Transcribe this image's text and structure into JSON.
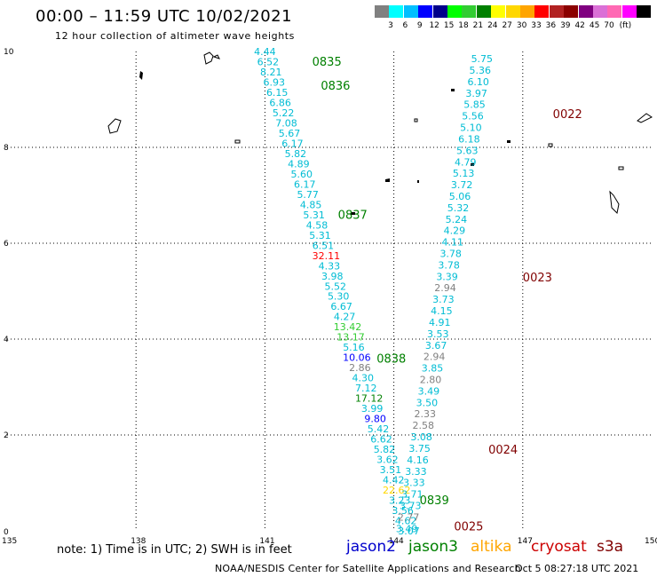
{
  "title": "00:00 – 11:59 UTC 10/02/2021",
  "subtitle": "12 hour collection of altimeter wave heights",
  "color_scale": {
    "unit": "(ft)",
    "colors": [
      "#808080",
      "#00ffff",
      "#00bfff",
      "#0000ff",
      "#00008b",
      "#00ff00",
      "#32cd32",
      "#008000",
      "#ffff00",
      "#ffd700",
      "#ffa500",
      "#ff0000",
      "#b22222",
      "#8b0000",
      "#800080",
      "#da70d6",
      "#ff69b4",
      "#ff00ff",
      "#000000"
    ],
    "labels": [
      "3",
      "6",
      "9",
      "12",
      "15",
      "18",
      "21",
      "24",
      "27",
      "30",
      "33",
      "36",
      "39",
      "42",
      "45",
      "70"
    ]
  },
  "axes": {
    "x_ticks": [
      "135",
      "138",
      "141",
      "144",
      "147",
      "150"
    ],
    "y_ticks": [
      "0",
      "2",
      "4",
      "6",
      "8",
      "10"
    ]
  },
  "track_labels": [
    {
      "text": "0835",
      "lon": 142.1,
      "lat": 9.8,
      "color": "#008000"
    },
    {
      "text": "0836",
      "lon": 142.3,
      "lat": 9.3,
      "color": "#008000"
    },
    {
      "text": "0837",
      "lon": 142.7,
      "lat": 6.6,
      "color": "#008000"
    },
    {
      "text": "0838",
      "lon": 143.6,
      "lat": 3.6,
      "color": "#008000"
    },
    {
      "text": "0839",
      "lon": 144.6,
      "lat": 0.65,
      "color": "#008000"
    },
    {
      "text": "0022",
      "lon": 147.7,
      "lat": 8.7,
      "color": "#800000"
    },
    {
      "text": "0023",
      "lon": 147.0,
      "lat": 5.3,
      "color": "#800000"
    },
    {
      "text": "0024",
      "lon": 146.2,
      "lat": 1.7,
      "color": "#800000"
    },
    {
      "text": "0025",
      "lon": 145.4,
      "lat": 0.1,
      "color": "#800000"
    }
  ],
  "passes": [
    {
      "name": "jason3-west",
      "lon_start": 141.0,
      "lon_end": 144.35,
      "lat_start": 10.0,
      "lat_end": 0.0,
      "values": [
        "4.44",
        "6.52",
        "8.21",
        "6.93",
        "6.15",
        "6.86",
        "5.22",
        "7.08",
        "5.67",
        "6.17",
        "5.82",
        "4.89",
        "5.60",
        "6.17",
        "5.77",
        "4.85",
        "5.31",
        "4.58",
        "5.31",
        "6.51",
        "32.11",
        "4.33",
        "3.98",
        "5.52",
        "5.30",
        "6.67",
        "4.27",
        "13.42",
        "13.17",
        "5.16",
        "10.06",
        "2.86",
        "4.30",
        "7.12",
        "17.12",
        "3.99",
        "9.80",
        "5.42",
        "6.62",
        "5.82",
        "3.62",
        "3.51",
        "4.42",
        "22.62",
        "3.23",
        "3.56",
        "4.62",
        "3.07"
      ],
      "colors": [
        "#00bcd4",
        "#00bcd4",
        "#00bcd4",
        "#00bcd4",
        "#00bcd4",
        "#00bcd4",
        "#00bcd4",
        "#00bcd4",
        "#00bcd4",
        "#00bcd4",
        "#00bcd4",
        "#00bcd4",
        "#00bcd4",
        "#00bcd4",
        "#00bcd4",
        "#00bcd4",
        "#00bcd4",
        "#00bcd4",
        "#00bcd4",
        "#00bcd4",
        "#ff0000",
        "#00bcd4",
        "#00bcd4",
        "#00bcd4",
        "#00bcd4",
        "#00bcd4",
        "#00bcd4",
        "#32cd32",
        "#32cd32",
        "#00bcd4",
        "#0000ff",
        "#808080",
        "#00bcd4",
        "#00bcd4",
        "#008000",
        "#00bcd4",
        "#0000ff",
        "#00bcd4",
        "#00bcd4",
        "#00bcd4",
        "#00bcd4",
        "#00bcd4",
        "#00bcd4",
        "#ffd700",
        "#00bcd4",
        "#00bcd4",
        "#00bcd4",
        "#00bcd4"
      ]
    },
    {
      "name": "cryosat-east",
      "lon_start": 146.05,
      "lon_end": 144.3,
      "lat_start": 9.85,
      "lat_end": 0.05,
      "values": [
        "5.75",
        "5.36",
        "6.10",
        "3.97",
        "5.85",
        "5.56",
        "5.10",
        "6.18",
        "5.63",
        "4.79",
        "5.13",
        "3.72",
        "5.06",
        "5.32",
        "5.24",
        "4.29",
        "4.11",
        "3.78",
        "3.78",
        "3.39",
        "2.94",
        "3.73",
        "4.15",
        "4.91",
        "3.53",
        "3.67",
        "2.94",
        "3.85",
        "2.80",
        "3.49",
        "3.50",
        "2.33",
        "2.58",
        "3.08",
        "3.75",
        "4.16",
        "3.33",
        "3.33",
        "3.71",
        "3.73",
        "2.77",
        "3.49"
      ],
      "colors": [
        "#00bcd4",
        "#00bcd4",
        "#00bcd4",
        "#00bcd4",
        "#00bcd4",
        "#00bcd4",
        "#00bcd4",
        "#00bcd4",
        "#00bcd4",
        "#00bcd4",
        "#00bcd4",
        "#00bcd4",
        "#00bcd4",
        "#00bcd4",
        "#00bcd4",
        "#00bcd4",
        "#00bcd4",
        "#00bcd4",
        "#00bcd4",
        "#00bcd4",
        "#808080",
        "#00bcd4",
        "#00bcd4",
        "#00bcd4",
        "#00bcd4",
        "#00bcd4",
        "#808080",
        "#00bcd4",
        "#808080",
        "#00bcd4",
        "#00bcd4",
        "#808080",
        "#808080",
        "#00bcd4",
        "#00bcd4",
        "#00bcd4",
        "#00bcd4",
        "#00bcd4",
        "#00bcd4",
        "#00bcd4",
        "#808080",
        "#00bcd4"
      ]
    }
  ],
  "footer": {
    "note": "note:  1) Time is in UTC;  2) SWH is in feet",
    "satellites": [
      {
        "name": "jason2",
        "color": "#0000cc"
      },
      {
        "name": "jason3",
        "color": "#008000"
      },
      {
        "name": "altika",
        "color": "#ffa500"
      },
      {
        "name": "cryosat",
        "color": "#cc0000"
      },
      {
        "name": "s3a",
        "color": "#800000"
      }
    ],
    "credit": "NOAA/NESDIS Center for Satellite Applications and Research",
    "timestamp": "Oct  5 08:27:18 UTC 2021"
  }
}
